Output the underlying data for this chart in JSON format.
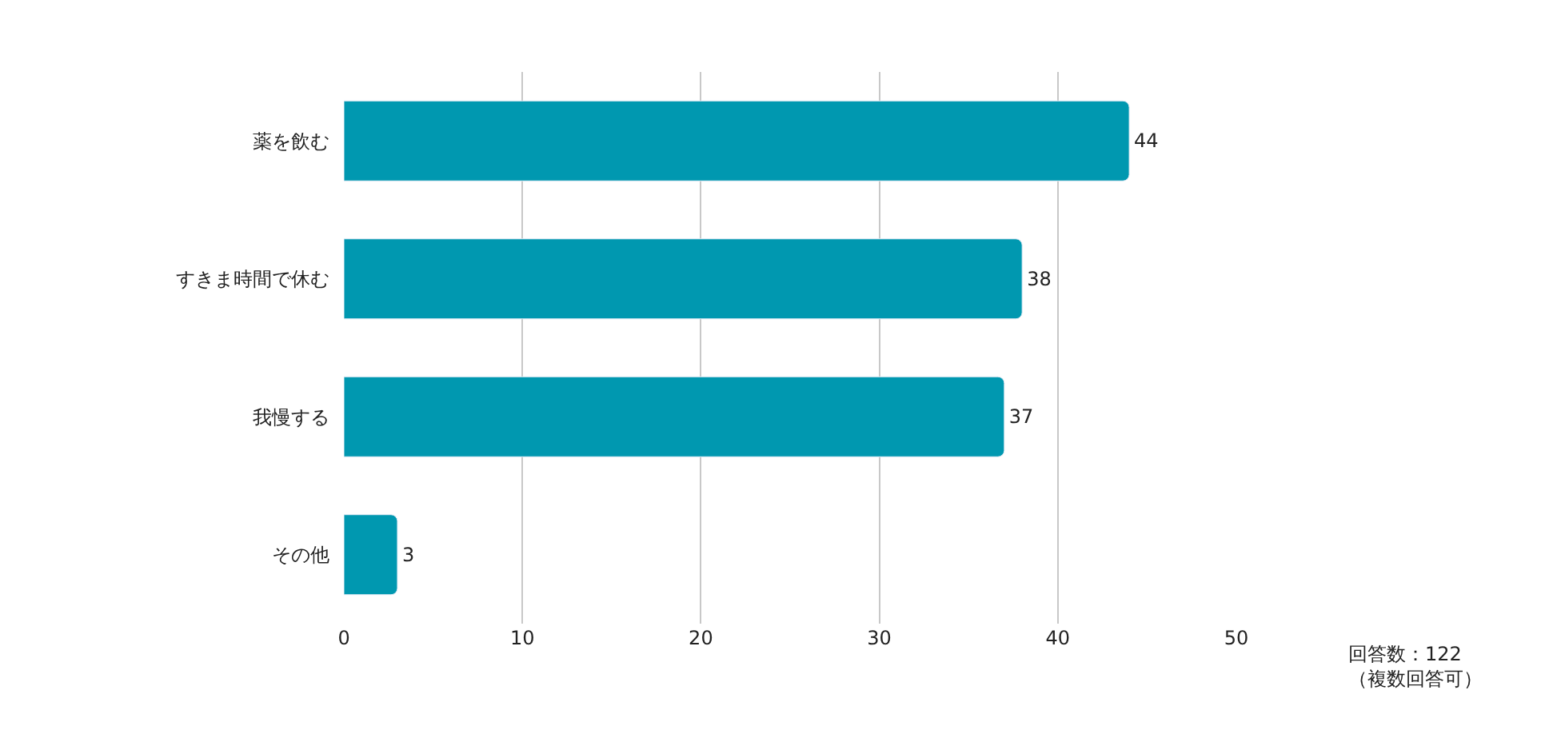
{
  "chart_data": {
    "type": "bar",
    "orientation": "horizontal",
    "categories": [
      "薬を飲む",
      "すきま時間で休む",
      "我慢する",
      "その他"
    ],
    "values": [
      44,
      38,
      37,
      3
    ],
    "color": "#0098b0",
    "xlim": [
      0,
      50
    ],
    "xticks": [
      0,
      10,
      20,
      30,
      40,
      50
    ],
    "grid": "x",
    "data_labels": true,
    "annotations": [
      "回答数：122\n（複数回答可）"
    ]
  }
}
